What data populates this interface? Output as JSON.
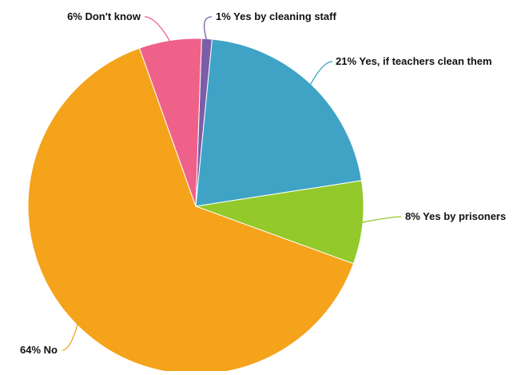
{
  "chart_data": {
    "type": "pie",
    "title": "",
    "slices": [
      {
        "label": "Yes by cleaning staff",
        "value": 1,
        "percent_label": "1%",
        "color": "#7b5ea7"
      },
      {
        "label": "Yes, if teachers clean them",
        "value": 21,
        "percent_label": "21%",
        "color": "#3fa3c6"
      },
      {
        "label": "Yes by prisoners",
        "value": 8,
        "percent_label": "8%",
        "color": "#93c92a"
      },
      {
        "label": "No",
        "value": 64,
        "percent_label": "64%",
        "color": "#f4a31b"
      },
      {
        "label": "Don't know",
        "value": 6,
        "percent_label": "6%",
        "color": "#ef6189"
      }
    ],
    "legend": "none"
  }
}
